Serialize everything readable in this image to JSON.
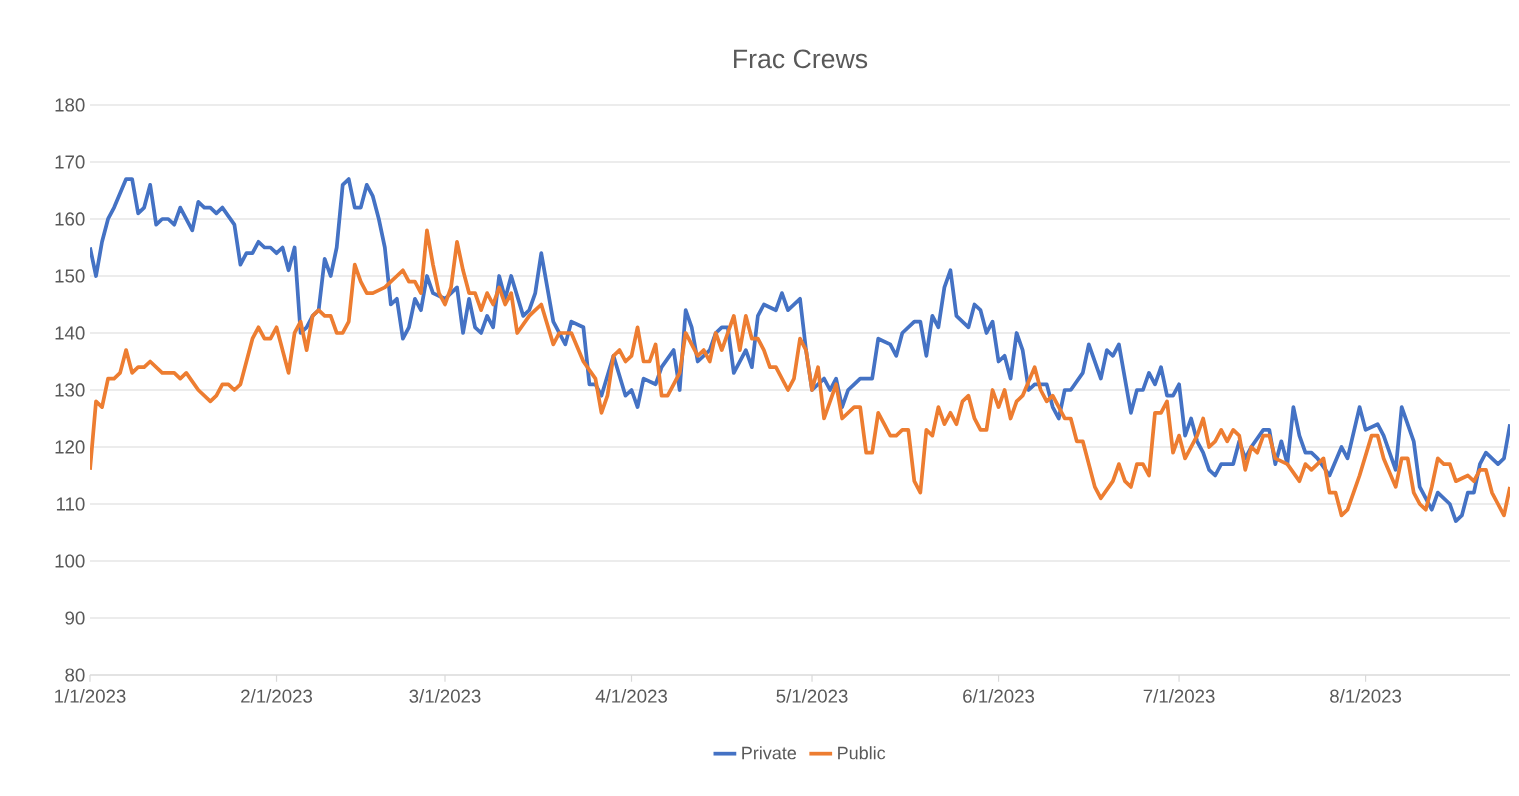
{
  "chart_data": {
    "type": "line",
    "title": "Frac Crews",
    "xlim": [
      "2023-01-01",
      "2023-08-25"
    ],
    "ylim": [
      80,
      180
    ],
    "yticks": [
      80,
      90,
      100,
      110,
      120,
      130,
      140,
      150,
      160,
      170,
      180
    ],
    "xticks": [
      {
        "value": "2023-01-01",
        "label": "1/1/2023"
      },
      {
        "value": "2023-02-01",
        "label": "2/1/2023"
      },
      {
        "value": "2023-03-01",
        "label": "3/1/2023"
      },
      {
        "value": "2023-04-01",
        "label": "4/1/2023"
      },
      {
        "value": "2023-05-01",
        "label": "5/1/2023"
      },
      {
        "value": "2023-06-01",
        "label": "6/1/2023"
      },
      {
        "value": "2023-07-01",
        "label": "7/1/2023"
      },
      {
        "value": "2023-08-01",
        "label": "8/1/2023"
      }
    ],
    "grid": "y",
    "legend": "bottom",
    "series": [
      {
        "name": "Private",
        "color": "#4472c4",
        "x": [
          "2023-01-01",
          "2023-01-02",
          "2023-01-03",
          "2023-01-04",
          "2023-01-05",
          "2023-01-07",
          "2023-01-08",
          "2023-01-09",
          "2023-01-10",
          "2023-01-11",
          "2023-01-12",
          "2023-01-13",
          "2023-01-14",
          "2023-01-15",
          "2023-01-16",
          "2023-01-18",
          "2023-01-19",
          "2023-01-20",
          "2023-01-21",
          "2023-01-22",
          "2023-01-23",
          "2023-01-25",
          "2023-01-26",
          "2023-01-27",
          "2023-01-28",
          "2023-01-29",
          "2023-01-30",
          "2023-01-31",
          "2023-02-01",
          "2023-02-02",
          "2023-02-03",
          "2023-02-04",
          "2023-02-05",
          "2023-02-06",
          "2023-02-07",
          "2023-02-08",
          "2023-02-09",
          "2023-02-10",
          "2023-02-11",
          "2023-02-12",
          "2023-02-13",
          "2023-02-14",
          "2023-02-15",
          "2023-02-16",
          "2023-02-17",
          "2023-02-18",
          "2023-02-19",
          "2023-02-20",
          "2023-02-21",
          "2023-02-22",
          "2023-02-23",
          "2023-02-24",
          "2023-02-25",
          "2023-02-26",
          "2023-02-27",
          "2023-03-01",
          "2023-03-03",
          "2023-03-04",
          "2023-03-05",
          "2023-03-06",
          "2023-03-07",
          "2023-03-08",
          "2023-03-09",
          "2023-03-10",
          "2023-03-11",
          "2023-03-12",
          "2023-03-14",
          "2023-03-15",
          "2023-03-16",
          "2023-03-17",
          "2023-03-19",
          "2023-03-21",
          "2023-03-22",
          "2023-03-24",
          "2023-03-25",
          "2023-03-26",
          "2023-03-27",
          "2023-03-29",
          "2023-03-31",
          "2023-04-01",
          "2023-04-02",
          "2023-04-03",
          "2023-04-05",
          "2023-04-06",
          "2023-04-08",
          "2023-04-09",
          "2023-04-10",
          "2023-04-11",
          "2023-04-12",
          "2023-04-14",
          "2023-04-15",
          "2023-04-16",
          "2023-04-17",
          "2023-04-18",
          "2023-04-20",
          "2023-04-21",
          "2023-04-22",
          "2023-04-23",
          "2023-04-25",
          "2023-04-26",
          "2023-04-27",
          "2023-04-29",
          "2023-04-30",
          "2023-05-01",
          "2023-05-03",
          "2023-05-04",
          "2023-05-05",
          "2023-05-06",
          "2023-05-07",
          "2023-05-08",
          "2023-05-09",
          "2023-05-11",
          "2023-05-12",
          "2023-05-14",
          "2023-05-15",
          "2023-05-16",
          "2023-05-18",
          "2023-05-19",
          "2023-05-20",
          "2023-05-21",
          "2023-05-22",
          "2023-05-23",
          "2023-05-24",
          "2023-05-25",
          "2023-05-27",
          "2023-05-28",
          "2023-05-29",
          "2023-05-30",
          "2023-05-31",
          "2023-06-01",
          "2023-06-02",
          "2023-06-03",
          "2023-06-04",
          "2023-06-05",
          "2023-06-06",
          "2023-06-07",
          "2023-06-09",
          "2023-06-10",
          "2023-06-11",
          "2023-06-12",
          "2023-06-13",
          "2023-06-15",
          "2023-06-16",
          "2023-06-17",
          "2023-06-18",
          "2023-06-19",
          "2023-06-20",
          "2023-06-21",
          "2023-06-22",
          "2023-06-23",
          "2023-06-24",
          "2023-06-25",
          "2023-06-26",
          "2023-06-27",
          "2023-06-28",
          "2023-06-29",
          "2023-06-30",
          "2023-07-01",
          "2023-07-02",
          "2023-07-03",
          "2023-07-04",
          "2023-07-05",
          "2023-07-06",
          "2023-07-07",
          "2023-07-08",
          "2023-07-10",
          "2023-07-11",
          "2023-07-12",
          "2023-07-13",
          "2023-07-15",
          "2023-07-16",
          "2023-07-17",
          "2023-07-18",
          "2023-07-19",
          "2023-07-20",
          "2023-07-21",
          "2023-07-22",
          "2023-07-23",
          "2023-07-24",
          "2023-07-26",
          "2023-07-28",
          "2023-07-29",
          "2023-07-31",
          "2023-08-01",
          "2023-08-03",
          "2023-08-04",
          "2023-08-06",
          "2023-08-07",
          "2023-08-09",
          "2023-08-10",
          "2023-08-12",
          "2023-08-13",
          "2023-08-15",
          "2023-08-16",
          "2023-08-17",
          "2023-08-18",
          "2023-08-19",
          "2023-08-20",
          "2023-08-21",
          "2023-08-23",
          "2023-08-24",
          "2023-08-25"
        ],
        "values": [
          155,
          150,
          156,
          160,
          162,
          167,
          167,
          161,
          162,
          166,
          159,
          160,
          160,
          159,
          162,
          158,
          163,
          162,
          162,
          161,
          162,
          159,
          152,
          154,
          154,
          156,
          155,
          155,
          154,
          155,
          151,
          155,
          140,
          141,
          143,
          144,
          153,
          150,
          155,
          166,
          167,
          162,
          162,
          166,
          164,
          160,
          155,
          145,
          146,
          139,
          141,
          146,
          144,
          150,
          147,
          146,
          148,
          140,
          146,
          141,
          140,
          143,
          141,
          150,
          146,
          150,
          143,
          144,
          147,
          154,
          142,
          138,
          142,
          141,
          131,
          131,
          129,
          136,
          129,
          130,
          127,
          132,
          131,
          134,
          137,
          130,
          144,
          141,
          135,
          137,
          140,
          141,
          141,
          133,
          137,
          134,
          143,
          145,
          144,
          147,
          144,
          146,
          137,
          130,
          132,
          130,
          132,
          127,
          130,
          131,
          132,
          132,
          139,
          138,
          136,
          140,
          142,
          142,
          136,
          143,
          141,
          148,
          151,
          143,
          141,
          145,
          144,
          140,
          142,
          135,
          136,
          132,
          140,
          137,
          130,
          131,
          131,
          127,
          125,
          130,
          130,
          133,
          138,
          135,
          132,
          137,
          136,
          138,
          132,
          126,
          130,
          130,
          133,
          131,
          134,
          129,
          129,
          131,
          122,
          125,
          121,
          119,
          116,
          115,
          117,
          117,
          121,
          118,
          120,
          123,
          123,
          117,
          121,
          117,
          127,
          122,
          119,
          119,
          118,
          115,
          120,
          118,
          127,
          123,
          124,
          122,
          116,
          127,
          121,
          113,
          109,
          112,
          110,
          107,
          108,
          112,
          112,
          117,
          119,
          117,
          118,
          124
        ]
      },
      {
        "name": "Public",
        "color": "#ed7d31",
        "x": [
          "2023-01-01",
          "2023-01-02",
          "2023-01-03",
          "2023-01-04",
          "2023-01-05",
          "2023-01-06",
          "2023-01-07",
          "2023-01-08",
          "2023-01-09",
          "2023-01-10",
          "2023-01-11",
          "2023-01-13",
          "2023-01-15",
          "2023-01-16",
          "2023-01-17",
          "2023-01-19",
          "2023-01-21",
          "2023-01-22",
          "2023-01-23",
          "2023-01-24",
          "2023-01-25",
          "2023-01-26",
          "2023-01-27",
          "2023-01-28",
          "2023-01-29",
          "2023-01-30",
          "2023-01-31",
          "2023-02-01",
          "2023-02-03",
          "2023-02-04",
          "2023-02-05",
          "2023-02-06",
          "2023-02-07",
          "2023-02-08",
          "2023-02-09",
          "2023-02-10",
          "2023-02-11",
          "2023-02-12",
          "2023-02-13",
          "2023-02-14",
          "2023-02-15",
          "2023-02-16",
          "2023-02-17",
          "2023-02-19",
          "2023-02-20",
          "2023-02-21",
          "2023-02-22",
          "2023-02-23",
          "2023-02-24",
          "2023-02-25",
          "2023-02-26",
          "2023-02-27",
          "2023-02-28",
          "2023-03-01",
          "2023-03-02",
          "2023-03-03",
          "2023-03-04",
          "2023-03-05",
          "2023-03-06",
          "2023-03-07",
          "2023-03-08",
          "2023-03-09",
          "2023-03-10",
          "2023-03-11",
          "2023-03-12",
          "2023-03-13",
          "2023-03-15",
          "2023-03-16",
          "2023-03-17",
          "2023-03-19",
          "2023-03-20",
          "2023-03-22",
          "2023-03-24",
          "2023-03-26",
          "2023-03-27",
          "2023-03-28",
          "2023-03-29",
          "2023-03-30",
          "2023-03-31",
          "2023-04-01",
          "2023-04-02",
          "2023-04-03",
          "2023-04-04",
          "2023-04-05",
          "2023-04-06",
          "2023-04-07",
          "2023-04-08",
          "2023-04-09",
          "2023-04-10",
          "2023-04-11",
          "2023-04-12",
          "2023-04-13",
          "2023-04-14",
          "2023-04-15",
          "2023-04-16",
          "2023-04-18",
          "2023-04-19",
          "2023-04-20",
          "2023-04-21",
          "2023-04-22",
          "2023-04-23",
          "2023-04-24",
          "2023-04-25",
          "2023-04-27",
          "2023-04-28",
          "2023-04-29",
          "2023-04-30",
          "2023-05-01",
          "2023-05-02",
          "2023-05-03",
          "2023-05-05",
          "2023-05-06",
          "2023-05-08",
          "2023-05-09",
          "2023-05-10",
          "2023-05-11",
          "2023-05-12",
          "2023-05-13",
          "2023-05-14",
          "2023-05-15",
          "2023-05-16",
          "2023-05-17",
          "2023-05-18",
          "2023-05-19",
          "2023-05-20",
          "2023-05-21",
          "2023-05-22",
          "2023-05-23",
          "2023-05-24",
          "2023-05-25",
          "2023-05-26",
          "2023-05-27",
          "2023-05-28",
          "2023-05-29",
          "2023-05-30",
          "2023-05-31",
          "2023-06-01",
          "2023-06-02",
          "2023-06-03",
          "2023-06-04",
          "2023-06-05",
          "2023-06-07",
          "2023-06-08",
          "2023-06-09",
          "2023-06-10",
          "2023-06-12",
          "2023-06-13",
          "2023-06-14",
          "2023-06-15",
          "2023-06-16",
          "2023-06-17",
          "2023-06-18",
          "2023-06-20",
          "2023-06-21",
          "2023-06-22",
          "2023-06-23",
          "2023-06-24",
          "2023-06-25",
          "2023-06-26",
          "2023-06-27",
          "2023-06-28",
          "2023-06-29",
          "2023-06-30",
          "2023-07-01",
          "2023-07-02",
          "2023-07-03",
          "2023-07-04",
          "2023-07-05",
          "2023-07-06",
          "2023-07-07",
          "2023-07-08",
          "2023-07-09",
          "2023-07-10",
          "2023-07-11",
          "2023-07-12",
          "2023-07-13",
          "2023-07-14",
          "2023-07-15",
          "2023-07-16",
          "2023-07-17",
          "2023-07-19",
          "2023-07-21",
          "2023-07-22",
          "2023-07-23",
          "2023-07-25",
          "2023-07-26",
          "2023-07-27",
          "2023-07-28",
          "2023-07-29",
          "2023-07-30",
          "2023-07-31",
          "2023-08-02",
          "2023-08-03",
          "2023-08-04",
          "2023-08-06",
          "2023-08-07",
          "2023-08-08",
          "2023-08-09",
          "2023-08-10",
          "2023-08-11",
          "2023-08-12",
          "2023-08-13",
          "2023-08-14",
          "2023-08-15",
          "2023-08-16",
          "2023-08-18",
          "2023-08-19",
          "2023-08-20",
          "2023-08-21",
          "2023-08-22",
          "2023-08-23",
          "2023-08-24",
          "2023-08-25"
        ],
        "values": [
          116,
          128,
          127,
          132,
          132,
          133,
          137,
          133,
          134,
          134,
          135,
          133,
          133,
          132,
          133,
          130,
          128,
          129,
          131,
          131,
          130,
          131,
          135,
          139,
          141,
          139,
          139,
          141,
          133,
          140,
          142,
          137,
          143,
          144,
          143,
          143,
          140,
          140,
          142,
          152,
          149,
          147,
          147,
          148,
          149,
          150,
          151,
          149,
          149,
          147,
          158,
          152,
          147,
          145,
          148,
          156,
          151,
          147,
          147,
          144,
          147,
          145,
          148,
          145,
          147,
          140,
          143,
          144,
          145,
          138,
          140,
          140,
          135,
          132,
          126,
          129,
          136,
          137,
          135,
          136,
          141,
          135,
          135,
          138,
          129,
          129,
          131,
          133,
          140,
          138,
          136,
          137,
          135,
          140,
          137,
          143,
          137,
          143,
          139,
          139,
          137,
          134,
          134,
          130,
          132,
          139,
          137,
          130,
          134,
          125,
          131,
          125,
          127,
          127,
          119,
          119,
          126,
          124,
          122,
          122,
          123,
          123,
          114,
          112,
          123,
          122,
          127,
          124,
          126,
          124,
          128,
          129,
          125,
          123,
          123,
          130,
          127,
          130,
          125,
          128,
          129,
          134,
          130,
          128,
          129,
          125,
          125,
          121,
          121,
          117,
          113,
          111,
          114,
          117,
          114,
          113,
          117,
          117,
          115,
          126,
          126,
          128,
          119,
          122,
          118,
          120,
          122,
          125,
          120,
          121,
          123,
          121,
          123,
          122,
          116,
          120,
          119,
          122,
          122,
          118,
          117,
          114,
          117,
          116,
          118,
          112,
          112,
          108,
          109,
          112,
          115,
          122,
          122,
          118,
          113,
          118,
          118,
          112,
          110,
          109,
          113,
          118,
          117,
          117,
          114,
          115,
          114,
          116,
          116,
          112,
          110,
          108,
          113
        ]
      }
    ]
  }
}
